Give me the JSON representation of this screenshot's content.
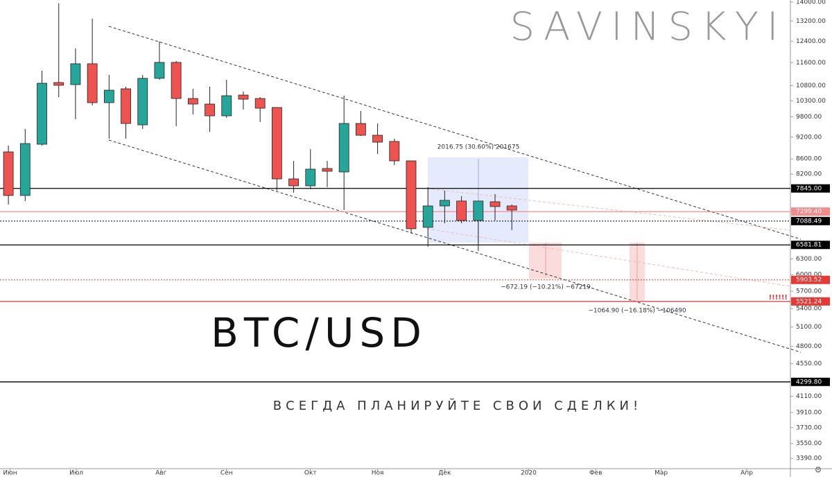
{
  "chart_data": {
    "type": "candlestick",
    "log_scale": true,
    "watermark": "SAVINSKYI",
    "symbol": "BTC/USD",
    "slogan": "ВСЕГДА ПЛАНИРУЙТЕ СВОИ СДЕЛКИ!",
    "annotations": {
      "range_up": "2016.75 (30.60%) 201675",
      "range_down_1": "−672.19 (−10.21%) −67219",
      "range_down_2": "−1064.90 (−16.18%) −106490",
      "alert": "!!!!!!"
    },
    "up_color": "#26a69a",
    "down_color": "#ef5350",
    "open": [
      8789,
      7675,
      9000,
      10903,
      10833,
      11558,
      10242,
      10693,
      9559,
      11046,
      11607,
      10375,
      10198,
      9831,
      10487,
      10375,
      10089,
      8081,
      7909,
      8346,
      8257,
      9600,
      9255,
      9078,
      8547,
      6951,
      7430,
      7544,
      7101,
      7527,
      7430
    ],
    "high": [
      8961,
      9437,
      11310,
      13940,
      12121,
      13294,
      11165,
      10763,
      11165,
      12382,
      11657,
      10693,
      10763,
      10998,
      10601,
      10420,
      10089,
      8547,
      8865,
      8547,
      10465,
      9980,
      9600,
      9157,
      8547,
      7876,
      7791,
      7659,
      7544,
      7708,
      7463
    ],
    "low": [
      7463,
      7544,
      8961,
      10420,
      9725,
      10154,
      9157,
      9157,
      9437,
      10998,
      9518,
      9873,
      9356,
      9767,
      10024,
      9642,
      7791,
      7741,
      7825,
      7876,
      7334,
      9235,
      8732,
      8437,
      6817,
      6543,
      7040,
      7040,
      6459,
      7101,
      6891
    ],
    "close": [
      7675,
      9019,
      10879,
      10810,
      11558,
      10242,
      10647,
      9600,
      11046,
      11607,
      10375,
      10198,
      9831,
      10465,
      10353,
      10067,
      8081,
      7909,
      8329,
      8275,
      9600,
      9255,
      9058,
      8547,
      6921,
      7430,
      7560,
      7101,
      7544,
      7415,
      7334
    ],
    "xlim": [
      -0.5,
      46.6
    ],
    "xticks": [
      {
        "value": 0.1,
        "label": "Июн"
      },
      {
        "value": 4.05,
        "label": "Июл"
      },
      {
        "value": 9.1,
        "label": "Авг"
      },
      {
        "value": 13,
        "label": "Сен"
      },
      {
        "value": 18,
        "label": "Окт"
      },
      {
        "value": 22,
        "label": "Ноя"
      },
      {
        "value": 26,
        "label": "Дек"
      },
      {
        "value": 31,
        "label": "2020"
      },
      {
        "value": 35,
        "label": "Фев"
      },
      {
        "value": 38.9,
        "label": "Мар"
      },
      {
        "value": 44,
        "label": "Апр"
      }
    ],
    "ylim": [
      3283,
      14091
    ],
    "yticks": [
      {
        "value": 14000,
        "label": "14000.00"
      },
      {
        "value": 13200,
        "label": "13200.00"
      },
      {
        "value": 12400,
        "label": "12400.00"
      },
      {
        "value": 11600,
        "label": "11600.00"
      },
      {
        "value": 10800,
        "label": "10800.00"
      },
      {
        "value": 10300,
        "label": "10300.00"
      },
      {
        "value": 9800,
        "label": "9800.00"
      },
      {
        "value": 9200,
        "label": "9200.00"
      },
      {
        "value": 8600,
        "label": "8600.00"
      },
      {
        "value": 8200,
        "label": "8200.00"
      },
      {
        "value": 6300,
        "label": "6300.00"
      },
      {
        "value": 6000,
        "label": "6000.00"
      },
      {
        "value": 5700,
        "label": "5700.00"
      },
      {
        "value": 5400,
        "label": "5400.00"
      },
      {
        "value": 5100,
        "label": "5100.00"
      },
      {
        "value": 4800,
        "label": "4800.00"
      },
      {
        "value": 4550,
        "label": "4550.00"
      },
      {
        "value": 4110,
        "label": "4110.00"
      },
      {
        "value": 3910,
        "label": "3910.00"
      },
      {
        "value": 3730,
        "label": "3730.00"
      },
      {
        "value": 3550,
        "label": "3550.00"
      },
      {
        "value": 3390,
        "label": "3390.00"
      }
    ],
    "levels": [
      {
        "value": 7845,
        "label": "7845.00",
        "color": "#000000",
        "style": "solid"
      },
      {
        "value": 7299.4,
        "label": "7299.40",
        "color": "#f28b8b",
        "style": "solid"
      },
      {
        "value": 7088.49,
        "label": "7088.49",
        "color": "#000000",
        "style": "dotted"
      },
      {
        "value": 6581.81,
        "label": "6581.81",
        "color": "#000000",
        "style": "solid"
      },
      {
        "value": 5903.52,
        "label": "5903.52",
        "color": "#e53935",
        "style": "dotted"
      },
      {
        "value": 5521.24,
        "label": "5521.24",
        "color": "#e53935",
        "style": "solid"
      },
      {
        "value": 4299.8,
        "label": "4299.80",
        "color": "#000000",
        "style": "solid"
      }
    ]
  }
}
